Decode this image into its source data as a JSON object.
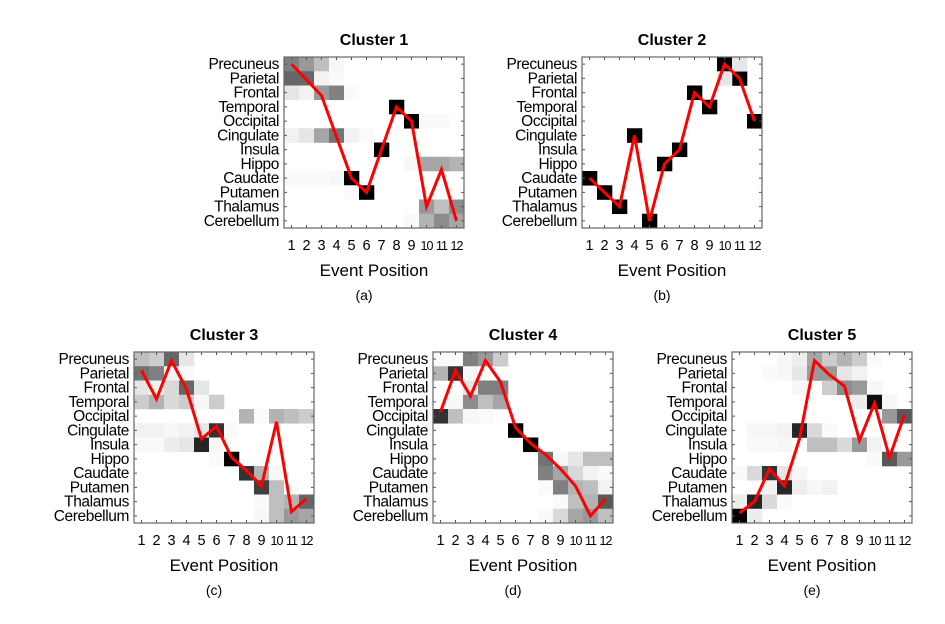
{
  "chart_data": [
    {
      "type": "heatmap",
      "title": "Cluster 1",
      "caption": "(a)",
      "xlabel": "Event Position",
      "x_ticks": [
        "1",
        "2",
        "3",
        "4",
        "5",
        "6",
        "7",
        "8",
        "9",
        "10",
        "11",
        "12"
      ],
      "y_ticks": [
        "Precuneus",
        "Parietal",
        "Frontal",
        "Temporal",
        "Occipital",
        "Cingulate",
        "Insula",
        "Hippo",
        "Caudate",
        "Putamen",
        "Thalamus",
        "Cerebellum"
      ],
      "cells": [
        [
          0,
          1,
          0.5
        ],
        [
          0,
          2,
          0.4
        ],
        [
          0,
          3,
          0.25
        ],
        [
          0,
          4,
          0.03
        ],
        [
          1,
          1,
          0.6
        ],
        [
          1,
          2,
          0.6
        ],
        [
          1,
          3,
          0.05
        ],
        [
          1,
          4,
          0.02
        ],
        [
          2,
          1,
          0.1
        ],
        [
          2,
          2,
          0.05
        ],
        [
          2,
          3,
          0.4
        ],
        [
          2,
          4,
          0.5
        ],
        [
          2,
          5,
          0.02
        ],
        [
          3,
          8,
          1
        ],
        [
          4,
          9,
          1
        ],
        [
          4,
          10,
          0.02
        ],
        [
          4,
          11,
          0.02
        ],
        [
          5,
          1,
          0.05
        ],
        [
          5,
          2,
          0.1
        ],
        [
          5,
          3,
          0.35
        ],
        [
          5,
          4,
          0.55
        ],
        [
          5,
          5,
          0.05
        ],
        [
          5,
          6,
          0.02
        ],
        [
          6,
          7,
          1
        ],
        [
          7,
          9,
          0.03
        ],
        [
          7,
          10,
          0.35
        ],
        [
          7,
          11,
          0.35
        ],
        [
          7,
          12,
          0.3
        ],
        [
          8,
          1,
          0.02
        ],
        [
          8,
          2,
          0.02
        ],
        [
          8,
          3,
          0.02
        ],
        [
          8,
          4,
          0.03
        ],
        [
          8,
          5,
          1
        ],
        [
          9,
          5,
          0.02
        ],
        [
          9,
          6,
          1
        ],
        [
          10,
          10,
          0.4
        ],
        [
          10,
          11,
          0.25
        ],
        [
          10,
          12,
          0.45
        ],
        [
          11,
          9,
          0.02
        ],
        [
          11,
          10,
          0.3
        ],
        [
          11,
          11,
          0.45
        ],
        [
          11,
          12,
          0.35
        ]
      ],
      "line_rows": [
        0,
        1.1,
        2.2,
        5.1,
        8,
        9,
        6,
        3,
        4,
        10,
        7.4,
        11
      ],
      "line_color": "#ff0000"
    },
    {
      "type": "heatmap",
      "title": "Cluster 2",
      "caption": "(b)",
      "xlabel": "Event Position",
      "x_ticks": [
        "1",
        "2",
        "3",
        "4",
        "5",
        "6",
        "7",
        "8",
        "9",
        "10",
        "11",
        "12"
      ],
      "y_ticks": [
        "Precuneus",
        "Parietal",
        "Frontal",
        "Temporal",
        "Occipital",
        "Cingulate",
        "Insula",
        "Hippo",
        "Caudate",
        "Putamen",
        "Thalamus",
        "Cerebellum"
      ],
      "cells": [
        [
          8,
          1,
          1
        ],
        [
          9,
          2,
          1
        ],
        [
          10,
          3,
          1
        ],
        [
          5,
          4,
          1
        ],
        [
          11,
          5,
          1
        ],
        [
          7,
          6,
          1
        ],
        [
          6,
          7,
          1
        ],
        [
          2,
          8,
          1
        ],
        [
          3,
          9,
          1
        ],
        [
          0,
          10,
          1
        ],
        [
          1,
          11,
          1
        ],
        [
          4,
          12,
          1
        ],
        [
          1,
          10,
          0.1
        ],
        [
          0,
          11,
          0.1
        ]
      ],
      "line_rows": [
        8,
        9,
        10,
        5,
        11,
        7,
        6,
        2,
        3,
        0,
        1,
        4
      ],
      "line_color": "#ff0000"
    },
    {
      "type": "heatmap",
      "title": "Cluster 3",
      "caption": "(c)",
      "xlabel": "Event Position",
      "x_ticks": [
        "1",
        "2",
        "3",
        "4",
        "5",
        "6",
        "7",
        "8",
        "9",
        "10",
        "11",
        "12"
      ],
      "y_ticks": [
        "Precuneus",
        "Parietal",
        "Frontal",
        "Temporal",
        "Occipital",
        "Cingulate",
        "Insula",
        "Hippo",
        "Caudate",
        "Putamen",
        "Thalamus",
        "Cerebellum"
      ],
      "cells": [
        [
          0,
          1,
          0.25
        ],
        [
          0,
          2,
          0.2
        ],
        [
          0,
          3,
          0.6
        ],
        [
          0,
          4,
          0.1
        ],
        [
          1,
          1,
          0.55
        ],
        [
          1,
          2,
          0.5
        ],
        [
          1,
          3,
          0.05
        ],
        [
          1,
          4,
          0.02
        ],
        [
          2,
          1,
          0.1
        ],
        [
          2,
          2,
          0.05
        ],
        [
          2,
          3,
          0.15
        ],
        [
          2,
          4,
          0.6
        ],
        [
          2,
          5,
          0.1
        ],
        [
          3,
          1,
          0.2
        ],
        [
          3,
          2,
          0.3
        ],
        [
          3,
          3,
          0.15
        ],
        [
          3,
          4,
          0.2
        ],
        [
          3,
          5,
          0.03
        ],
        [
          3,
          6,
          0.2
        ],
        [
          4,
          8,
          0.3
        ],
        [
          4,
          9,
          0.02
        ],
        [
          4,
          10,
          0.3
        ],
        [
          4,
          11,
          0.25
        ],
        [
          4,
          12,
          0.2
        ],
        [
          5,
          1,
          0.05
        ],
        [
          5,
          2,
          0.05
        ],
        [
          5,
          3,
          0.03
        ],
        [
          5,
          4,
          0.05
        ],
        [
          5,
          5,
          0.1
        ],
        [
          5,
          6,
          0.8
        ],
        [
          5,
          7,
          0.02
        ],
        [
          6,
          1,
          0.02
        ],
        [
          6,
          2,
          0.02
        ],
        [
          6,
          3,
          0.07
        ],
        [
          6,
          4,
          0.1
        ],
        [
          6,
          5,
          0.85
        ],
        [
          6,
          6,
          0.03
        ],
        [
          7,
          6,
          0.02
        ],
        [
          7,
          7,
          1
        ],
        [
          8,
          8,
          0.8
        ],
        [
          8,
          9,
          0.3
        ],
        [
          8,
          10,
          0.03
        ],
        [
          9,
          9,
          0.75
        ],
        [
          9,
          10,
          0.25
        ],
        [
          9,
          11,
          0.02
        ],
        [
          10,
          9,
          0.02
        ],
        [
          10,
          10,
          0.25
        ],
        [
          10,
          11,
          0.3
        ],
        [
          10,
          12,
          0.6
        ],
        [
          11,
          9,
          0.03
        ],
        [
          11,
          10,
          0.25
        ],
        [
          11,
          11,
          0.4
        ],
        [
          11,
          12,
          0.35
        ]
      ],
      "line_rows": [
        0.8,
        2.8,
        0.1,
        2.1,
        5.6,
        4.7,
        6.9,
        7.8,
        8.9,
        4.4,
        10.7,
        9.8
      ],
      "line_color": "#ff0000"
    },
    {
      "type": "heatmap",
      "title": "Cluster 4",
      "caption": "(d)",
      "xlabel": "Event Position",
      "x_ticks": [
        "1",
        "2",
        "3",
        "4",
        "5",
        "6",
        "7",
        "8",
        "9",
        "10",
        "11",
        "12"
      ],
      "y_ticks": [
        "Precuneus",
        "Parietal",
        "Frontal",
        "Temporal",
        "Occipital",
        "Cingulate",
        "Insula",
        "Hippo",
        "Caudate",
        "Putamen",
        "Thalamus",
        "Cerebellum"
      ],
      "cells": [
        [
          0,
          1,
          0.02
        ],
        [
          0,
          2,
          0.02
        ],
        [
          0,
          3,
          0.5
        ],
        [
          0,
          4,
          0.4
        ],
        [
          0,
          5,
          0.2
        ],
        [
          1,
          1,
          0.3
        ],
        [
          1,
          2,
          0.8
        ],
        [
          1,
          3,
          0.03
        ],
        [
          1,
          4,
          0.02
        ],
        [
          2,
          3,
          0.1
        ],
        [
          2,
          4,
          0.5
        ],
        [
          2,
          5,
          0.5
        ],
        [
          3,
          2,
          0.03
        ],
        [
          3,
          3,
          0.45
        ],
        [
          3,
          4,
          0.25
        ],
        [
          3,
          5,
          0.35
        ],
        [
          4,
          1,
          0.8
        ],
        [
          4,
          2,
          0.25
        ],
        [
          4,
          3,
          0.03
        ],
        [
          4,
          4,
          0.02
        ],
        [
          5,
          6,
          1
        ],
        [
          6,
          7,
          1
        ],
        [
          7,
          8,
          0.55
        ],
        [
          7,
          9,
          0.03
        ],
        [
          7,
          10,
          0.1
        ],
        [
          7,
          11,
          0.25
        ],
        [
          7,
          12,
          0.25
        ],
        [
          8,
          8,
          0.5
        ],
        [
          8,
          9,
          0.35
        ],
        [
          8,
          10,
          0.15
        ],
        [
          8,
          11,
          0.05
        ],
        [
          8,
          12,
          0.02
        ],
        [
          9,
          8,
          0.02
        ],
        [
          9,
          9,
          0.5
        ],
        [
          9,
          10,
          0.3
        ],
        [
          9,
          11,
          0.25
        ],
        [
          9,
          12,
          0.05
        ],
        [
          10,
          9,
          0.02
        ],
        [
          10,
          10,
          0.25
        ],
        [
          10,
          11,
          0.3
        ],
        [
          10,
          12,
          0.65
        ],
        [
          11,
          8,
          0.02
        ],
        [
          11,
          9,
          0.15
        ],
        [
          11,
          10,
          0.35
        ],
        [
          11,
          11,
          0.4
        ],
        [
          11,
          12,
          0.25
        ]
      ],
      "line_rows": [
        3.7,
        0.8,
        2.6,
        0.1,
        1.6,
        4.8,
        5.9,
        6.7,
        7.7,
        8.9,
        11,
        9.8
      ],
      "line_color": "#ff0000"
    },
    {
      "type": "heatmap",
      "title": "Cluster 5",
      "caption": "(e)",
      "xlabel": "Event Position",
      "x_ticks": [
        "1",
        "2",
        "3",
        "4",
        "5",
        "6",
        "7",
        "8",
        "9",
        "10",
        "11",
        "12"
      ],
      "y_ticks": [
        "Precuneus",
        "Parietal",
        "Frontal",
        "Temporal",
        "Occipital",
        "Cingulate",
        "Insula",
        "Hippo",
        "Caudate",
        "Putamen",
        "Thalamus",
        "Cerebellum"
      ],
      "cells": [
        [
          0,
          4,
          0.03
        ],
        [
          0,
          5,
          0.07
        ],
        [
          0,
          6,
          0.35
        ],
        [
          0,
          7,
          0.2
        ],
        [
          0,
          8,
          0.3
        ],
        [
          0,
          9,
          0.2
        ],
        [
          0,
          10,
          0.02
        ],
        [
          1,
          3,
          0.02
        ],
        [
          1,
          4,
          0.03
        ],
        [
          1,
          5,
          0.1
        ],
        [
          1,
          6,
          0.4
        ],
        [
          1,
          7,
          0.4
        ],
        [
          1,
          8,
          0.1
        ],
        [
          1,
          9,
          0.05
        ],
        [
          2,
          5,
          0.03
        ],
        [
          2,
          7,
          0.2
        ],
        [
          2,
          8,
          0.45
        ],
        [
          2,
          9,
          0.4
        ],
        [
          2,
          10,
          0.03
        ],
        [
          3,
          9,
          0.07
        ],
        [
          3,
          10,
          0.95
        ],
        [
          3,
          11,
          0.03
        ],
        [
          4,
          11,
          0.4
        ],
        [
          4,
          12,
          0.65
        ],
        [
          5,
          2,
          0.03
        ],
        [
          5,
          3,
          0.03
        ],
        [
          5,
          4,
          0.05
        ],
        [
          5,
          5,
          0.85
        ],
        [
          5,
          6,
          0.15
        ],
        [
          5,
          7,
          0.02
        ],
        [
          6,
          2,
          0.02
        ],
        [
          6,
          3,
          0.02
        ],
        [
          6,
          4,
          0.03
        ],
        [
          6,
          6,
          0.25
        ],
        [
          6,
          7,
          0.25
        ],
        [
          6,
          8,
          0.15
        ],
        [
          6,
          9,
          0.4
        ],
        [
          6,
          10,
          0.05
        ],
        [
          7,
          10,
          0.02
        ],
        [
          7,
          11,
          0.65
        ],
        [
          7,
          12,
          0.4
        ],
        [
          8,
          1,
          0.02
        ],
        [
          8,
          2,
          0.15
        ],
        [
          8,
          3,
          0.8
        ],
        [
          8,
          4,
          0.1
        ],
        [
          8,
          5,
          0.03
        ],
        [
          9,
          3,
          0.05
        ],
        [
          9,
          4,
          0.85
        ],
        [
          9,
          5,
          0.07
        ],
        [
          9,
          6,
          0.03
        ],
        [
          9,
          7,
          0.05
        ],
        [
          10,
          1,
          0.07
        ],
        [
          10,
          2,
          0.85
        ],
        [
          10,
          3,
          0.15
        ],
        [
          10,
          4,
          0.02
        ],
        [
          11,
          1,
          1
        ],
        [
          11,
          2,
          0.07
        ]
      ],
      "line_rows": [
        10.8,
        10,
        7.7,
        8.9,
        5.6,
        0.1,
        1.1,
        1.9,
        5.7,
        3.1,
        6.9,
        3.9
      ],
      "line_color": "#ff0000"
    }
  ]
}
